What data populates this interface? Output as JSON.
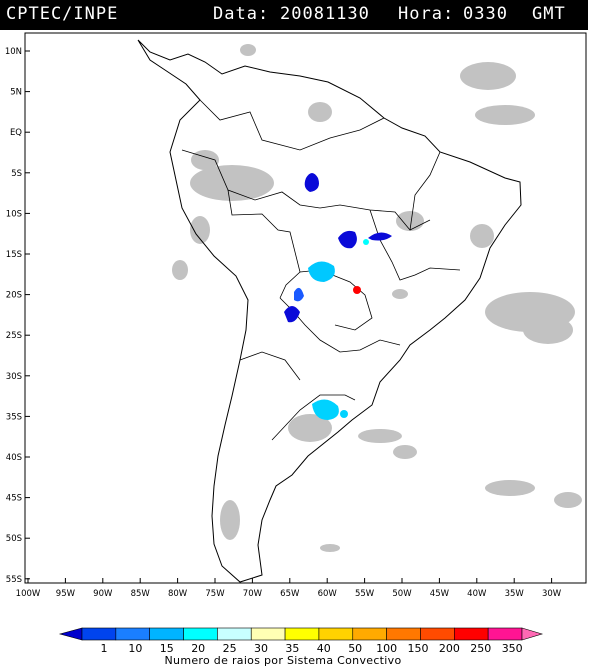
{
  "header": {
    "agency": "CPTEC/INPE",
    "data_label": "Data:",
    "date": "20081130",
    "hora_label": "Hora:",
    "time": "0330",
    "tz": "GMT"
  },
  "map": {
    "lat_labels": [
      "10N",
      "5N",
      "EQ",
      "5S",
      "10S",
      "15S",
      "20S",
      "25S",
      "30S",
      "35S",
      "40S",
      "45S",
      "50S",
      "55S"
    ],
    "lon_labels": [
      "100W",
      "95W",
      "90W",
      "85W",
      "80W",
      "75W",
      "70W",
      "65W",
      "60W",
      "55W",
      "50W",
      "45W",
      "40W",
      "35W",
      "30W"
    ]
  },
  "colorbar": {
    "values": [
      "1",
      "10",
      "15",
      "20",
      "25",
      "30",
      "35",
      "40",
      "50",
      "100",
      "150",
      "200",
      "250",
      "350"
    ],
    "colors": [
      "#0000cc",
      "#0044ee",
      "#1a7fff",
      "#00b4ff",
      "#00ffff",
      "#c8ffff",
      "#ffffb4",
      "#ffff00",
      "#ffd200",
      "#ffaa00",
      "#ff7800",
      "#ff4b00",
      "#ff0000",
      "#ff1493",
      "#ff69b4"
    ],
    "title": "Numero de raios por Sistema Convectivo"
  },
  "colors": {
    "land_line": "#000000",
    "cloud": "#bdbdbd",
    "title_bg": "#000000"
  }
}
